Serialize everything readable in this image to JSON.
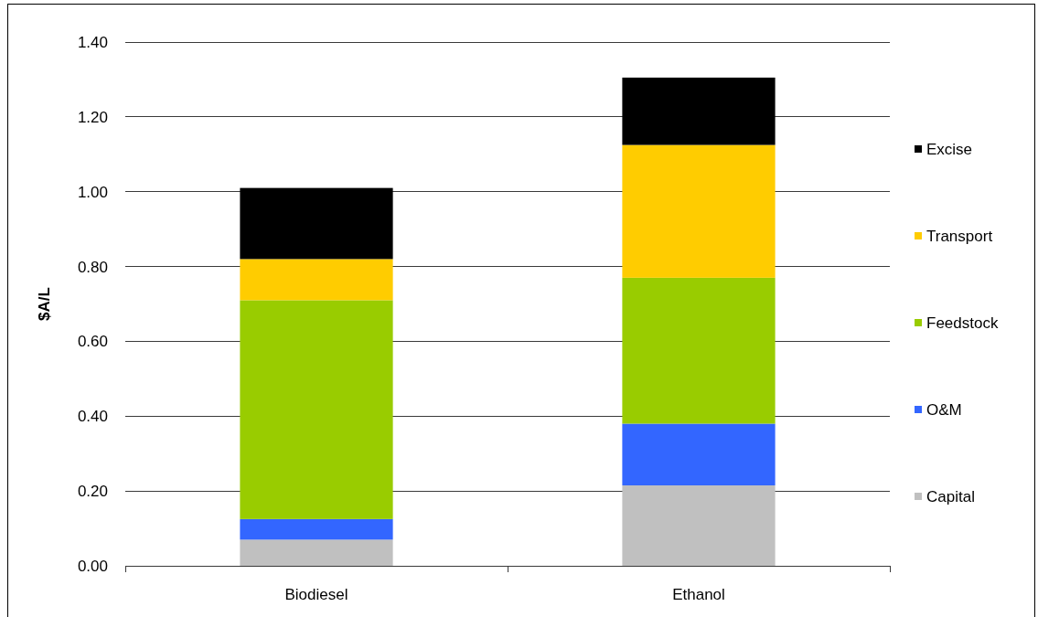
{
  "chart_data": {
    "type": "bar",
    "stacked": true,
    "ylabel": "$A/L",
    "categories": [
      "Biodiesel",
      "Ethanol"
    ],
    "series": [
      {
        "name": "Capital",
        "color": "#c0c0c0",
        "values": [
          0.07,
          0.215
        ]
      },
      {
        "name": "O&M",
        "color": "#3366ff",
        "values": [
          0.055,
          0.165
        ]
      },
      {
        "name": "Feedstock",
        "color": "#99cc00",
        "values": [
          0.585,
          0.39
        ]
      },
      {
        "name": "Transport",
        "color": "#ffcc00",
        "values": [
          0.11,
          0.355
        ]
      },
      {
        "name": "Excise",
        "color": "#000000",
        "values": [
          0.19,
          0.18
        ]
      }
    ],
    "ylim": [
      0,
      1.4
    ],
    "yticks": [
      {
        "value": 0,
        "label": "0.00"
      },
      {
        "value": 0.2,
        "label": "0.20"
      },
      {
        "value": 0.4,
        "label": "0.40"
      },
      {
        "value": 0.6,
        "label": "0.60"
      },
      {
        "value": 0.8,
        "label": "0.80"
      },
      {
        "value": 1,
        "label": "1.00"
      },
      {
        "value": 1.2,
        "label": "1.20"
      },
      {
        "value": 1.4,
        "label": "1.40"
      }
    ],
    "grid": "y",
    "legend": "right"
  }
}
